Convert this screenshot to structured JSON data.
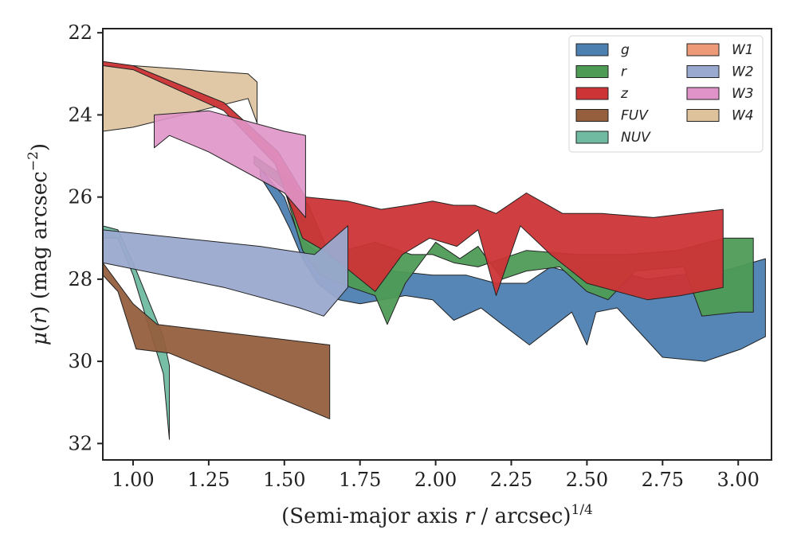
{
  "chart_data": {
    "type": "area",
    "xlabel": "(Semi-major axis r / arcsec)^1/4",
    "xlabel_parts": {
      "prefix": "(Semi-major axis ",
      "var": "r",
      "mid": " / arcsec)",
      "sup": "1/4"
    },
    "ylabel": "μ(r) (mag arcsec^−2)",
    "ylabel_parts": {
      "mu": "μ",
      "open": "(",
      "var": "r",
      "rest": ") (mag arcsec",
      "sup": "−2",
      "close": ")"
    },
    "xlim": [
      0.9,
      3.11
    ],
    "ylim": [
      32.4,
      21.9
    ],
    "y_inverted": true,
    "xticks": [
      1.0,
      1.25,
      1.5,
      1.75,
      2.0,
      2.25,
      2.5,
      2.75,
      3.0
    ],
    "xtick_labels": [
      "1.00",
      "1.25",
      "1.50",
      "1.75",
      "2.00",
      "2.25",
      "2.50",
      "2.75",
      "3.00"
    ],
    "yticks": [
      22,
      24,
      26,
      28,
      30,
      32
    ],
    "ytick_labels": [
      "22",
      "24",
      "26",
      "28",
      "30",
      "32"
    ],
    "grid": false,
    "legend_position": "top-right",
    "legend_columns": 2,
    "series": [
      {
        "name": "W4",
        "color": "#ddc29c",
        "opacity": 0.9,
        "upper": [
          [
            0.9,
            22.8
          ],
          [
            1.0,
            22.8
          ],
          [
            1.38,
            23.0
          ],
          [
            1.41,
            23.2
          ]
        ],
        "lower": [
          [
            0.9,
            24.4
          ],
          [
            1.0,
            24.3
          ],
          [
            1.38,
            23.6
          ],
          [
            1.41,
            24.2
          ]
        ]
      },
      {
        "name": "NUV",
        "color": "#6fbaa0",
        "opacity": 0.95,
        "upper": [
          [
            0.9,
            26.7
          ],
          [
            0.95,
            26.8
          ],
          [
            1.0,
            27.6
          ],
          [
            1.05,
            28.5
          ],
          [
            1.1,
            29.4
          ],
          [
            1.12,
            30.1
          ]
        ],
        "lower": [
          [
            0.9,
            27.0
          ],
          [
            0.95,
            27.0
          ],
          [
            1.0,
            27.9
          ],
          [
            1.05,
            29.1
          ],
          [
            1.1,
            30.3
          ],
          [
            1.12,
            31.9
          ]
        ]
      },
      {
        "name": "FUV",
        "color": "#955f3e",
        "opacity": 0.95,
        "upper": [
          [
            0.9,
            27.6
          ],
          [
            1.0,
            28.6
          ],
          [
            1.08,
            29.1
          ],
          [
            1.65,
            29.6
          ]
        ],
        "lower": [
          [
            0.9,
            27.9
          ],
          [
            0.95,
            28.3
          ],
          [
            1.01,
            29.7
          ],
          [
            1.12,
            29.8
          ],
          [
            1.65,
            31.4
          ]
        ]
      },
      {
        "name": "g",
        "color": "#4c80b1",
        "opacity": 0.95,
        "upper": [
          [
            1.42,
            25.3
          ],
          [
            1.5,
            26.0
          ],
          [
            1.55,
            27.0
          ],
          [
            1.62,
            27.4
          ],
          [
            1.75,
            27.6
          ],
          [
            1.86,
            27.8
          ],
          [
            1.99,
            27.9
          ],
          [
            2.1,
            27.9
          ],
          [
            2.2,
            28.1
          ],
          [
            2.3,
            28.1
          ],
          [
            2.38,
            27.7
          ],
          [
            2.48,
            27.9
          ],
          [
            2.6,
            27.8
          ],
          [
            2.7,
            28.0
          ],
          [
            2.8,
            27.9
          ],
          [
            2.95,
            27.8
          ],
          [
            3.09,
            27.5
          ]
        ],
        "lower": [
          [
            1.42,
            25.5
          ],
          [
            1.48,
            26.2
          ],
          [
            1.52,
            26.8
          ],
          [
            1.56,
            27.5
          ],
          [
            1.61,
            28.1
          ],
          [
            1.68,
            28.5
          ],
          [
            1.75,
            28.6
          ],
          [
            1.9,
            28.4
          ],
          [
            1.99,
            28.5
          ],
          [
            2.06,
            29.0
          ],
          [
            2.15,
            28.7
          ],
          [
            2.22,
            29.1
          ],
          [
            2.31,
            29.6
          ],
          [
            2.38,
            29.2
          ],
          [
            2.45,
            28.8
          ],
          [
            2.5,
            29.6
          ],
          [
            2.53,
            28.8
          ],
          [
            2.6,
            28.7
          ],
          [
            2.75,
            29.9
          ],
          [
            2.89,
            30.0
          ],
          [
            3.01,
            29.7
          ],
          [
            3.09,
            29.4
          ]
        ]
      },
      {
        "name": "r",
        "color": "#4e9b56",
        "opacity": 0.95,
        "upper": [
          [
            1.4,
            25.0
          ],
          [
            1.52,
            25.6
          ],
          [
            1.58,
            26.2
          ],
          [
            1.65,
            27.4
          ],
          [
            1.8,
            27.1
          ],
          [
            1.92,
            27.4
          ],
          [
            1.99,
            27.4
          ],
          [
            2.06,
            27.6
          ],
          [
            2.14,
            27.7
          ],
          [
            2.3,
            27.3
          ],
          [
            2.47,
            27.4
          ],
          [
            2.63,
            27.4
          ],
          [
            2.8,
            27.3
          ],
          [
            2.95,
            27.0
          ],
          [
            3.05,
            27.0
          ]
        ],
        "lower": [
          [
            1.4,
            25.2
          ],
          [
            1.5,
            25.8
          ],
          [
            1.56,
            27.3
          ],
          [
            1.62,
            27.9
          ],
          [
            1.72,
            28.2
          ],
          [
            1.8,
            28.4
          ],
          [
            1.84,
            29.1
          ],
          [
            1.9,
            28.1
          ],
          [
            2.0,
            27.1
          ],
          [
            2.08,
            27.5
          ],
          [
            2.14,
            27.2
          ],
          [
            2.22,
            28.0
          ],
          [
            2.3,
            27.8
          ],
          [
            2.41,
            27.7
          ],
          [
            2.5,
            28.3
          ],
          [
            2.57,
            28.5
          ],
          [
            2.66,
            27.8
          ],
          [
            2.82,
            27.7
          ],
          [
            2.88,
            28.9
          ],
          [
            3.0,
            28.8
          ],
          [
            3.05,
            28.8
          ]
        ]
      },
      {
        "name": "z",
        "color": "#cc3436",
        "opacity": 0.95,
        "upper": [
          [
            0.9,
            22.7
          ],
          [
            1.0,
            22.8
          ],
          [
            1.3,
            23.7
          ],
          [
            1.48,
            24.9
          ],
          [
            1.57,
            26.0
          ],
          [
            1.71,
            26.1
          ],
          [
            1.82,
            26.3
          ],
          [
            1.91,
            26.2
          ],
          [
            1.99,
            26.1
          ],
          [
            2.06,
            26.2
          ],
          [
            2.13,
            26.2
          ],
          [
            2.2,
            26.4
          ],
          [
            2.3,
            25.9
          ],
          [
            2.42,
            26.4
          ],
          [
            2.55,
            26.4
          ],
          [
            2.72,
            26.5
          ],
          [
            2.95,
            26.3
          ]
        ],
        "lower": [
          [
            0.9,
            22.8
          ],
          [
            1.0,
            22.9
          ],
          [
            1.3,
            23.9
          ],
          [
            1.47,
            25.2
          ],
          [
            1.56,
            27.0
          ],
          [
            1.63,
            27.3
          ],
          [
            1.7,
            27.7
          ],
          [
            1.8,
            28.3
          ],
          [
            1.89,
            27.4
          ],
          [
            1.98,
            27.0
          ],
          [
            2.07,
            27.2
          ],
          [
            2.14,
            26.8
          ],
          [
            2.2,
            28.4
          ],
          [
            2.28,
            26.7
          ],
          [
            2.38,
            27.4
          ],
          [
            2.5,
            28.1
          ],
          [
            2.7,
            28.5
          ],
          [
            2.81,
            28.4
          ],
          [
            2.95,
            28.2
          ]
        ]
      },
      {
        "name": "W3",
        "color": "#df93c8",
        "opacity": 0.9,
        "upper": [
          [
            1.07,
            24.0
          ],
          [
            1.25,
            23.9
          ],
          [
            1.5,
            24.4
          ],
          [
            1.57,
            24.5
          ]
        ],
        "lower": [
          [
            1.07,
            24.8
          ],
          [
            1.12,
            24.5
          ],
          [
            1.25,
            24.9
          ],
          [
            1.5,
            25.9
          ],
          [
            1.57,
            26.5
          ]
        ]
      },
      {
        "name": "W2",
        "color": "#9aa9cf",
        "opacity": 0.95,
        "upper": [
          [
            0.9,
            26.8
          ],
          [
            1.42,
            27.2
          ],
          [
            1.6,
            27.4
          ],
          [
            1.71,
            26.7
          ]
        ],
        "lower": [
          [
            0.9,
            27.6
          ],
          [
            1.3,
            28.2
          ],
          [
            1.55,
            28.7
          ],
          [
            1.63,
            28.9
          ],
          [
            1.71,
            28.2
          ]
        ]
      }
    ],
    "legend": [
      {
        "name": "g",
        "color": "#4c80b1"
      },
      {
        "name": "r",
        "color": "#4e9b56"
      },
      {
        "name": "z",
        "color": "#cc3436"
      },
      {
        "name": "FUV",
        "color": "#955f3e"
      },
      {
        "name": "NUV",
        "color": "#6fbaa0"
      },
      {
        "name": "W1",
        "color": "#ed9a79"
      },
      {
        "name": "W2",
        "color": "#9aa9cf"
      },
      {
        "name": "W3",
        "color": "#df93c8"
      },
      {
        "name": "W4",
        "color": "#ddc29c"
      }
    ]
  }
}
